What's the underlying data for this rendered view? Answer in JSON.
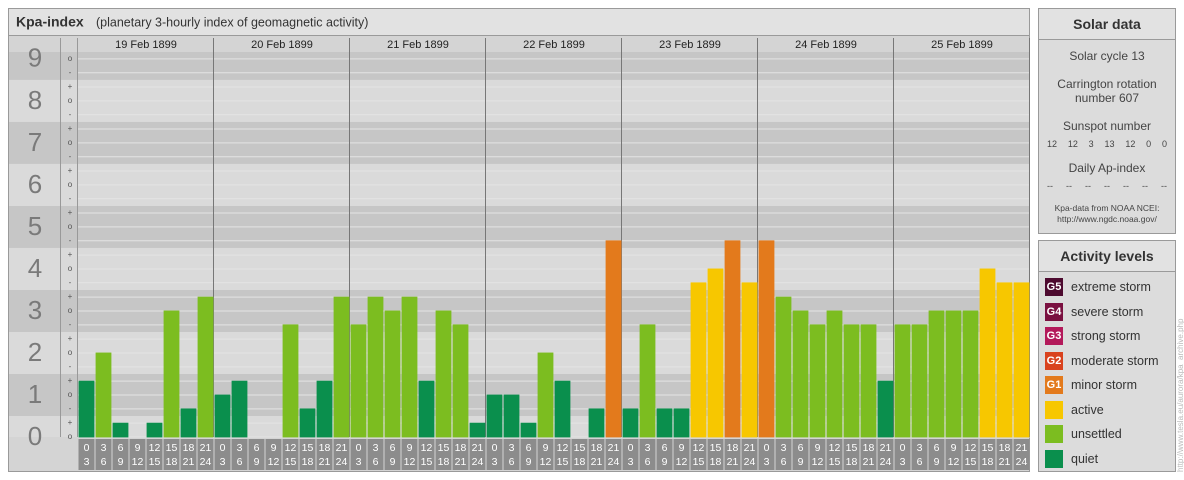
{
  "header": {
    "title": "Kpa-index",
    "subtitle": "(planetary 3-hourly index of geomagnetic activity)"
  },
  "chart_data": {
    "type": "bar",
    "days": [
      "19 Feb 1899",
      "20 Feb 1899",
      "21 Feb 1899",
      "22 Feb 1899",
      "23 Feb 1899",
      "24 Feb 1899",
      "25 Feb 1899"
    ],
    "slots": [
      [
        "0",
        "3"
      ],
      [
        "3",
        "6"
      ],
      [
        "6",
        "9"
      ],
      [
        "9",
        "12"
      ],
      [
        "12",
        "15"
      ],
      [
        "15",
        "18"
      ],
      [
        "18",
        "21"
      ],
      [
        "21",
        "24"
      ]
    ],
    "values": [
      1.33,
      2,
      0.33,
      0,
      0.33,
      3,
      0.67,
      3.33,
      1,
      1.33,
      0,
      0,
      2.67,
      0.67,
      1.33,
      3.33,
      2.67,
      3.33,
      3,
      3.33,
      1.33,
      3,
      2.67,
      0.33,
      1,
      1,
      0.33,
      2,
      1.33,
      0,
      0.67,
      4.67,
      0.67,
      2.67,
      0.67,
      0.67,
      3.67,
      4,
      4.67,
      3.67,
      4.67,
      3.33,
      3,
      2.67,
      3,
      2.67,
      2.67,
      1.33,
      2.67,
      2.67,
      3,
      3,
      3,
      4,
      3.67,
      3.67
    ],
    "colors": [
      "#0a8f4d",
      "#7cbd20",
      "#0a8f4d",
      "#0a8f4d",
      "#0a8f4d",
      "#7cbd20",
      "#0a8f4d",
      "#7cbd20",
      "#0a8f4d",
      "#0a8f4d",
      "#0a8f4d",
      "#0a8f4d",
      "#7cbd20",
      "#0a8f4d",
      "#0a8f4d",
      "#7cbd20",
      "#7cbd20",
      "#7cbd20",
      "#7cbd20",
      "#7cbd20",
      "#0a8f4d",
      "#7cbd20",
      "#7cbd20",
      "#0a8f4d",
      "#0a8f4d",
      "#0a8f4d",
      "#0a8f4d",
      "#7cbd20",
      "#0a8f4d",
      "#0a8f4d",
      "#0a8f4d",
      "#e37a1c",
      "#0a8f4d",
      "#7cbd20",
      "#0a8f4d",
      "#0a8f4d",
      "#f7c700",
      "#f7c700",
      "#e37a1c",
      "#f7c700",
      "#e37a1c",
      "#7cbd20",
      "#7cbd20",
      "#7cbd20",
      "#7cbd20",
      "#7cbd20",
      "#7cbd20",
      "#0a8f4d",
      "#7cbd20",
      "#7cbd20",
      "#7cbd20",
      "#7cbd20",
      "#7cbd20",
      "#f7c700",
      "#f7c700",
      "#f7c700"
    ],
    "ylim": [
      0,
      9.33
    ],
    "yticks": [
      0,
      1,
      2,
      3,
      4,
      5,
      6,
      7,
      8,
      9
    ],
    "minor_yticks": [
      {
        "value": 0,
        "label": "o"
      },
      {
        "value": 0.33,
        "label": "+"
      },
      {
        "value": 0.67,
        "label": "-"
      },
      {
        "value": 1,
        "label": "o"
      },
      {
        "value": 1.33,
        "label": "+"
      },
      {
        "value": 1.67,
        "label": "-"
      },
      {
        "value": 2,
        "label": "o"
      },
      {
        "value": 2.33,
        "label": "+"
      },
      {
        "value": 2.67,
        "label": "-"
      },
      {
        "value": 3,
        "label": "o"
      },
      {
        "value": 3.33,
        "label": "+"
      },
      {
        "value": 3.67,
        "label": "-"
      },
      {
        "value": 4,
        "label": "o"
      },
      {
        "value": 4.33,
        "label": "+"
      },
      {
        "value": 4.67,
        "label": "-"
      },
      {
        "value": 5,
        "label": "o"
      },
      {
        "value": 5.33,
        "label": "+"
      },
      {
        "value": 5.67,
        "label": "-"
      },
      {
        "value": 6,
        "label": "o"
      },
      {
        "value": 6.33,
        "label": "+"
      },
      {
        "value": 6.67,
        "label": "-"
      },
      {
        "value": 7,
        "label": "o"
      },
      {
        "value": 7.33,
        "label": "+"
      },
      {
        "value": 7.67,
        "label": "-"
      },
      {
        "value": 8,
        "label": "o"
      },
      {
        "value": 8.33,
        "label": "+"
      },
      {
        "value": 8.67,
        "label": "-"
      },
      {
        "value": 9,
        "label": "o"
      }
    ],
    "grid": true
  },
  "solar_data": {
    "title": "Solar data",
    "cycle": "Solar cycle 13",
    "rotation": "Carrington rotation number 607",
    "sunspot_title": "Sunspot number",
    "sunspot": [
      12,
      12,
      3,
      13,
      12,
      0,
      0
    ],
    "ap_title": "Daily Ap-index",
    "ap": [
      "--",
      "--",
      "--",
      "--",
      "--",
      "--",
      "--"
    ],
    "source": "Kpa-data from NOAA NCEI:",
    "source_url": "http://www.ngdc.noaa.gov/"
  },
  "activity_levels": {
    "title": "Activity levels",
    "items": [
      {
        "badge": "G5",
        "name": "extreme storm",
        "color": "#4d0a2f"
      },
      {
        "badge": "G4",
        "name": "severe storm",
        "color": "#7a1040"
      },
      {
        "badge": "G3",
        "name": "strong storm",
        "color": "#b3195a"
      },
      {
        "badge": "G2",
        "name": "moderate storm",
        "color": "#d9421e"
      },
      {
        "badge": "G1",
        "name": "minor storm",
        "color": "#e37a1c"
      },
      {
        "name": "active",
        "color": "#f7c700"
      },
      {
        "name": "unsettled",
        "color": "#7cbd20"
      },
      {
        "name": "quiet",
        "color": "#0a8f4d"
      }
    ]
  },
  "page_url": "http://www.tesla.eu/aurora/kpa_archive.php"
}
